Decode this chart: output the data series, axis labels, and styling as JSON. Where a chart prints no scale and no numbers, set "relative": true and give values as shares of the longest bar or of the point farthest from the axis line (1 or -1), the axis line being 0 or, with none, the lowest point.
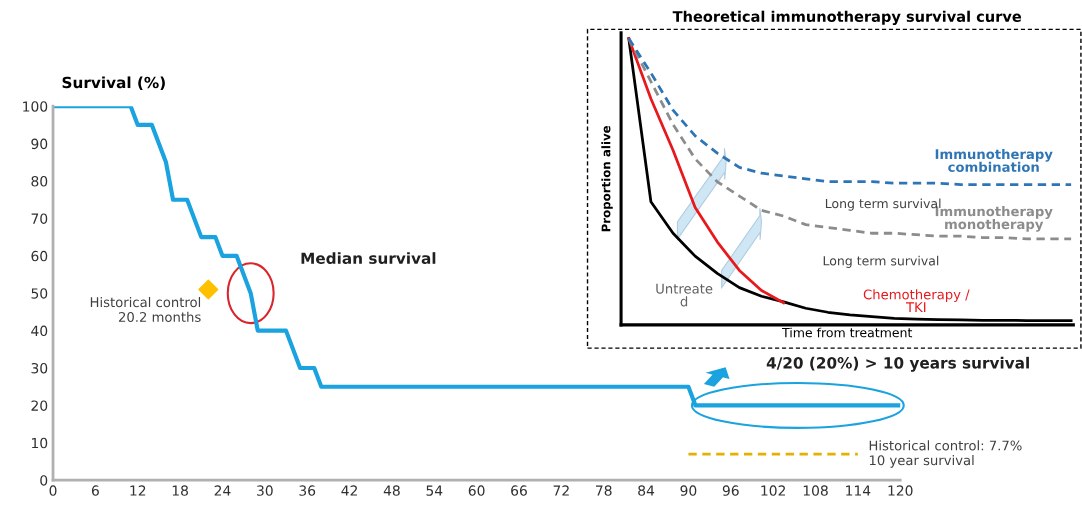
{
  "chart_data": [
    {
      "type": "line",
      "ylabel": "Survival (%)",
      "xlim": [
        0,
        120
      ],
      "ylim": [
        0,
        100
      ],
      "xticks": [
        0,
        6,
        12,
        18,
        24,
        30,
        36,
        42,
        48,
        54,
        60,
        66,
        72,
        78,
        84,
        90,
        96,
        102,
        108,
        114,
        120
      ],
      "yticks": [
        0,
        10,
        20,
        30,
        40,
        50,
        60,
        70,
        80,
        90,
        100
      ],
      "series": [
        {
          "type": "line",
          "color": "#1aa3de",
          "x": [
            0,
            11,
            12,
            14,
            16,
            17,
            19,
            21,
            23,
            24,
            26,
            28,
            29,
            33,
            35,
            37,
            38,
            90,
            91,
            120
          ],
          "values": [
            100,
            100,
            95,
            95,
            85,
            75,
            75,
            65,
            65,
            60,
            60,
            50,
            40,
            40,
            30,
            30,
            25,
            25,
            20,
            20
          ]
        },
        {
          "type": "scatter",
          "name": "Historical control\n20.2 months",
          "color": "#ffc000",
          "marker": "diamond",
          "x": [
            22
          ],
          "values": [
            51
          ]
        },
        {
          "type": "line",
          "name": "Historical control: 7.7%\n10 year survival",
          "color": "#e6b000",
          "line_style": "dashed",
          "x": [
            90,
            114
          ],
          "values": [
            7,
            7
          ]
        }
      ],
      "annotations": [
        "Median survival",
        "4/20 (20%) > 10 years survival"
      ]
    },
    {
      "type": "line",
      "relative": true,
      "title": "Theoretical immunotherapy survival curve",
      "xlabel": "Time from treatment",
      "ylabel": "Proportion alive",
      "categories": [
        null,
        null,
        null,
        null,
        null,
        null,
        null,
        null,
        null,
        null,
        null,
        null,
        null,
        null,
        null,
        null,
        null,
        null,
        null,
        null,
        null
      ],
      "series": [
        {
          "name": "Untreate\nd",
          "color": "#000000",
          "values": [
            1,
            0.43,
            0.32,
            0.24,
            0.18,
            0.13,
            0.1,
            0.08,
            0.058,
            0.044,
            0.035,
            0.029,
            0.023,
            0.02,
            0.018,
            0.017,
            0.016,
            0.016,
            0.015,
            0.015,
            0.015
          ]
        },
        {
          "name": "Chemotherapy /\nTKI",
          "color": "#e8191c",
          "values": [
            1,
            0.79,
            0.61,
            0.41,
            0.29,
            0.19,
            0.12,
            0.077,
            null,
            null,
            null,
            null,
            null,
            null,
            null,
            null,
            null,
            null,
            null,
            null,
            null
          ]
        },
        {
          "name": "Immunotherapy\nmonotherapy",
          "color": "#8c8c8c",
          "line_style": "dashed",
          "values": [
            1,
            0.85,
            0.7,
            0.58,
            0.5,
            0.45,
            0.4,
            0.38,
            0.35,
            0.34,
            0.33,
            0.32,
            0.32,
            0.315,
            0.31,
            0.31,
            0.305,
            0.305,
            0.3,
            0.3,
            0.3
          ]
        },
        {
          "name": "Immunotherapy\ncombination",
          "color": "#2e75b6",
          "line_style": "dashed",
          "values": [
            1,
            0.88,
            0.75,
            0.66,
            0.6,
            0.55,
            0.53,
            0.52,
            0.51,
            0.5,
            0.5,
            0.5,
            0.495,
            0.495,
            0.495,
            0.49,
            0.49,
            0.49,
            0.49,
            0.49,
            0.49
          ]
        }
      ],
      "annotations": [
        "Long term survival",
        "Long term survival"
      ]
    }
  ]
}
